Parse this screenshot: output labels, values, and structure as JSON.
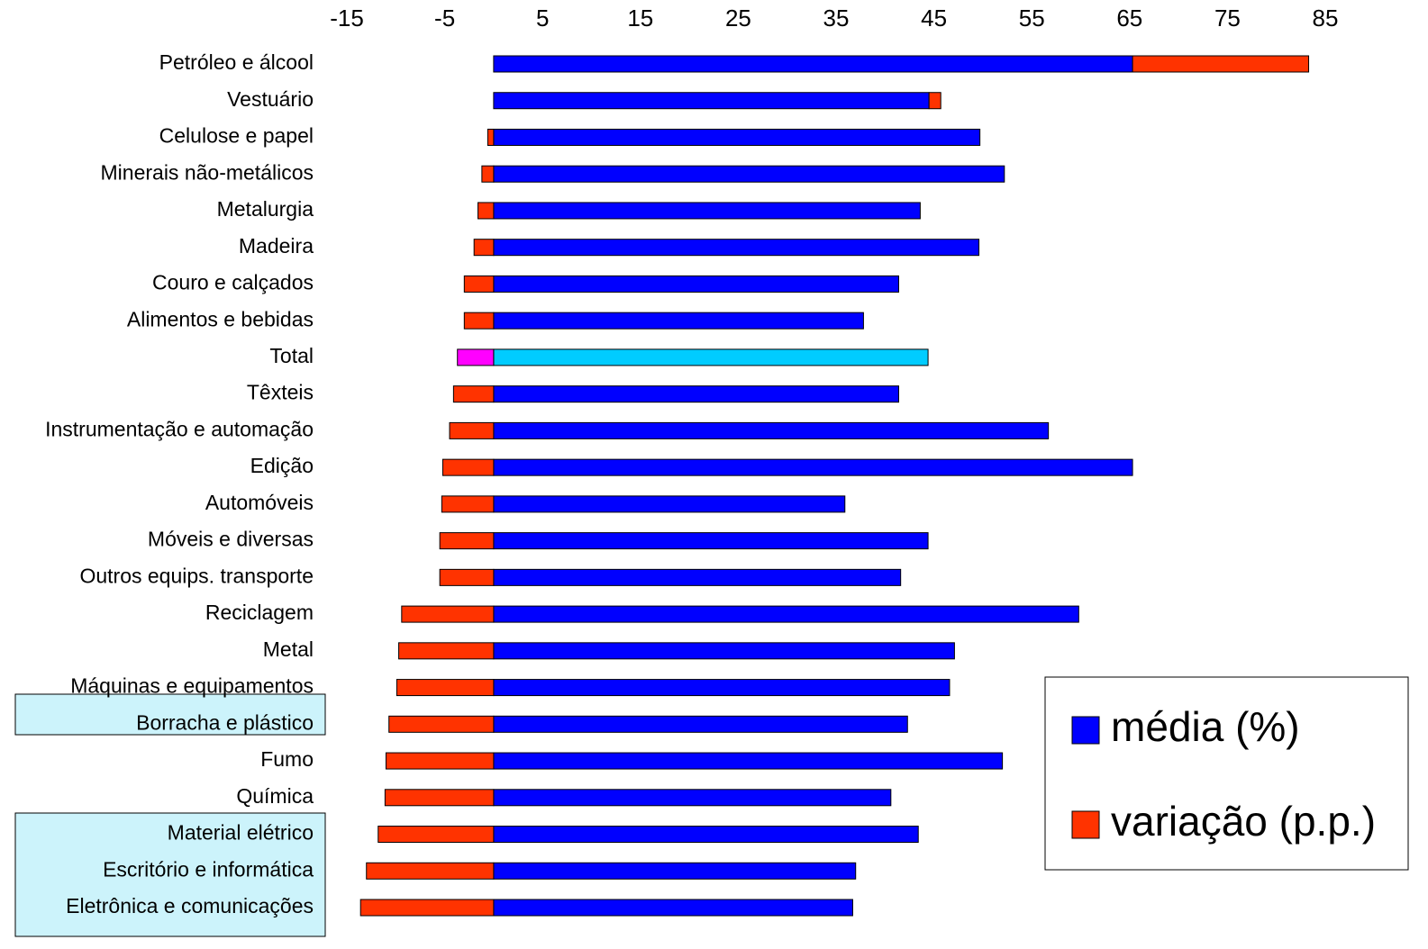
{
  "chart_data": {
    "type": "bar",
    "orientation": "horizontal",
    "stacked": true,
    "categories": [
      "Petróleo e álcool",
      "Vestuário",
      "Celulose e papel",
      "Minerais não-metálicos",
      "Metalurgia",
      "Madeira",
      "Couro e calçados",
      "Alimentos e bebidas",
      "Total",
      "Têxteis",
      "Instrumentação e automação",
      "Edição",
      "Automóveis",
      "Móveis e diversas",
      "Outros equips. transporte",
      "Reciclagem",
      "Metal",
      "Máquinas e equipamentos",
      "Borracha e plástico",
      "Fumo",
      "Química",
      "Material elétrico",
      "Escritório e informática",
      "Eletrônica e comunicações"
    ],
    "series": [
      {
        "name": "média (%)",
        "color": "#0000ff",
        "colors": [
          "#0000ff",
          "#0000ff",
          "#0000ff",
          "#0000ff",
          "#0000ff",
          "#0000ff",
          "#0000ff",
          "#0000ff",
          "#00ccff",
          "#0000ff",
          "#0000ff",
          "#0000ff",
          "#0000ff",
          "#0000ff",
          "#0000ff",
          "#0000ff",
          "#0000ff",
          "#0000ff",
          "#0000ff",
          "#0000ff",
          "#0000ff",
          "#0000ff",
          "#0000ff",
          "#0000ff"
        ],
        "values": [
          65.3,
          44.5,
          49.7,
          52.2,
          43.6,
          49.6,
          41.4,
          37.8,
          44.4,
          41.4,
          56.7,
          65.3,
          35.9,
          44.4,
          41.6,
          59.8,
          47.1,
          46.6,
          42.3,
          52.0,
          40.6,
          43.4,
          37.0,
          36.7
        ]
      },
      {
        "name": "variação (p.p.)",
        "color": "#ff3300",
        "colors": [
          "#ff3300",
          "#ff3300",
          "#ff3300",
          "#ff3300",
          "#ff3300",
          "#ff3300",
          "#ff3300",
          "#ff3300",
          "#ff00ff",
          "#ff3300",
          "#ff3300",
          "#ff3300",
          "#ff3300",
          "#ff3300",
          "#ff3300",
          "#ff3300",
          "#ff3300",
          "#ff3300",
          "#ff3300",
          "#ff3300",
          "#ff3300",
          "#ff3300",
          "#ff3300",
          "#ff3300"
        ],
        "values": [
          18.0,
          1.2,
          -0.6,
          -1.2,
          -1.6,
          -2.0,
          -3.0,
          -3.0,
          -3.7,
          -4.1,
          -4.5,
          -5.2,
          -5.3,
          -5.5,
          -5.5,
          -9.4,
          -9.7,
          -9.9,
          -10.7,
          -11.0,
          -11.1,
          -11.8,
          -13.0,
          -13.6
        ]
      }
    ],
    "xlim": [
      -15,
      85
    ],
    "xticks": [
      -15,
      -5,
      5,
      15,
      25,
      35,
      45,
      55,
      65,
      75,
      85
    ],
    "grid": false,
    "legend": "lower right"
  }
}
